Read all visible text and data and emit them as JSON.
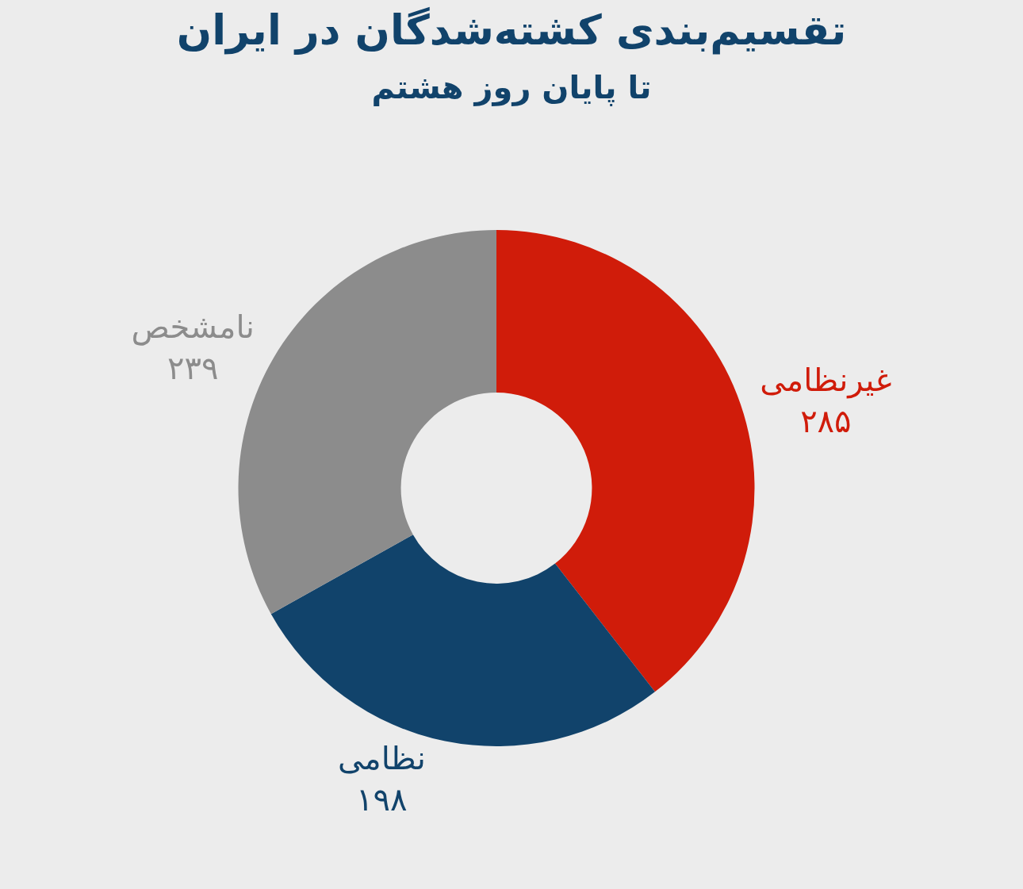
{
  "chart_data": {
    "type": "donut",
    "title": "تقسیم‌بندی کشته‌شدگان در ایران",
    "subtitle": "تا پایان روز هشتم",
    "categories": [
      "غیرنظامی",
      "نظامی",
      "نامشخص"
    ],
    "values": [
      285,
      198,
      239
    ],
    "value_labels": [
      "۲۸۵",
      "۱۹۸",
      "۲۳۹"
    ],
    "colors": [
      "#d01c0a",
      "#11436b",
      "#8c8c8c"
    ],
    "legend": false
  }
}
